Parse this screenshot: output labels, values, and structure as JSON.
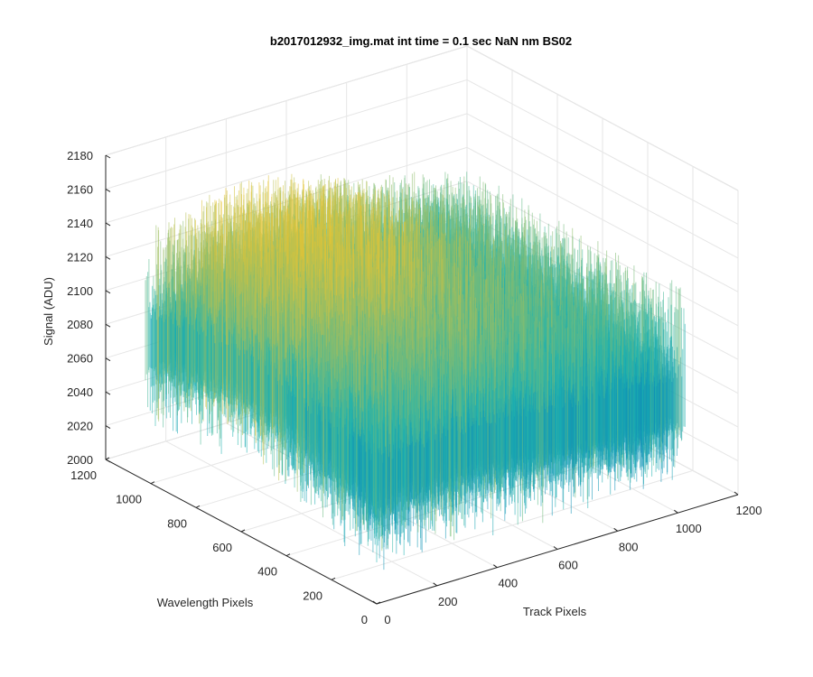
{
  "chart_data": {
    "type": "surface",
    "title": "b2017012932_img.mat int time = 0.1 sec  NaN nm BS02",
    "xlabel": "Track Pixels",
    "ylabel": "Wavelength Pixels",
    "zlabel": "Signal (ADU)",
    "xlim": [
      0,
      1200
    ],
    "ylim": [
      0,
      1200
    ],
    "zlim": [
      2000,
      2180
    ],
    "x_ticks": [
      "0",
      "200",
      "400",
      "600",
      "800",
      "1000",
      "1200"
    ],
    "y_ticks": [
      "0",
      "200",
      "400",
      "600",
      "800",
      "1000",
      "1200"
    ],
    "z_ticks": [
      "2000",
      "2020",
      "2040",
      "2060",
      "2080",
      "2100",
      "2120",
      "2140",
      "2160",
      "2180"
    ],
    "grid": true,
    "colormap": "parula",
    "data_extent": {
      "x": [
        0,
        1024
      ],
      "y": [
        0,
        1024
      ]
    },
    "signal_range": [
      2010,
      2165
    ],
    "typical_signal": [
      2060,
      2110
    ],
    "colors": {
      "low": "#0072bd",
      "mid": "#1fb5b0",
      "high": "#e9c432",
      "axis": "#262626",
      "grid": "#e6e6e6"
    }
  }
}
